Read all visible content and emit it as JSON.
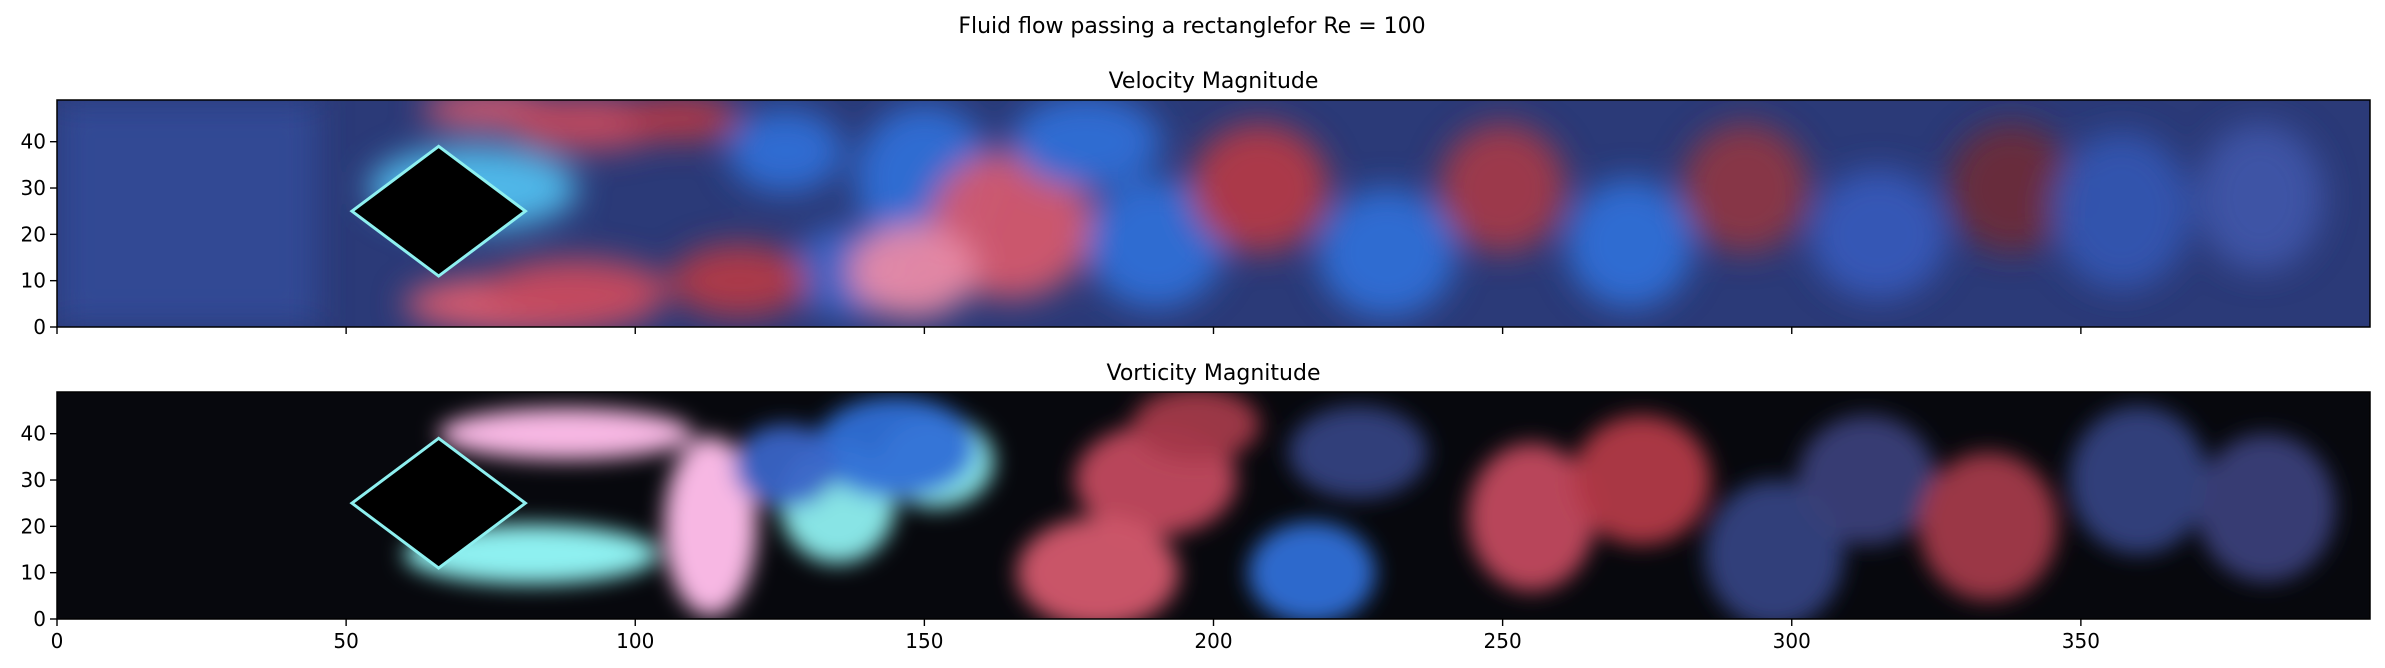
{
  "suptitle": "Fluid flow passing a rectanglefor Re = 100",
  "chart_data": [
    {
      "type": "heatmap",
      "title": "Velocity Magnitude",
      "xlim": [
        0,
        400
      ],
      "ylim": [
        0,
        49
      ],
      "xticks": [
        0,
        50,
        100,
        150,
        200,
        250,
        300,
        350
      ],
      "xtick_labels_shown": false,
      "yticks": [
        0,
        10,
        20,
        30,
        40
      ],
      "colormap": "diverging icefire-like (blue-cyan / black / red-pink)",
      "colors": {
        "cyan": "#8ef0f0",
        "blue": "#2f6fd6",
        "navy": "#33407f",
        "black": "#000000",
        "red": "#b23847",
        "pink": "#f7b7e3"
      },
      "obstacle": {
        "shape": "rotated square",
        "vertices": [
          [
            51,
            25
          ],
          [
            66,
            39
          ],
          [
            81,
            25
          ],
          [
            66,
            11
          ]
        ]
      },
      "grid": false
    },
    {
      "type": "heatmap",
      "title": "Vorticity Magnitude",
      "xlim": [
        0,
        400
      ],
      "ylim": [
        0,
        49
      ],
      "xticks": [
        0,
        50,
        100,
        150,
        200,
        250,
        300,
        350
      ],
      "xtick_labels": [
        "0",
        "50",
        "100",
        "150",
        "200",
        "250",
        "300",
        "350"
      ],
      "yticks": [
        0,
        10,
        20,
        30,
        40
      ],
      "colormap": "diverging icefire-like (blue-cyan / black / red-pink)",
      "obstacle": {
        "shape": "rotated square",
        "vertices": [
          [
            51,
            25
          ],
          [
            66,
            39
          ],
          [
            81,
            25
          ],
          [
            66,
            11
          ]
        ]
      },
      "grid": false
    }
  ]
}
